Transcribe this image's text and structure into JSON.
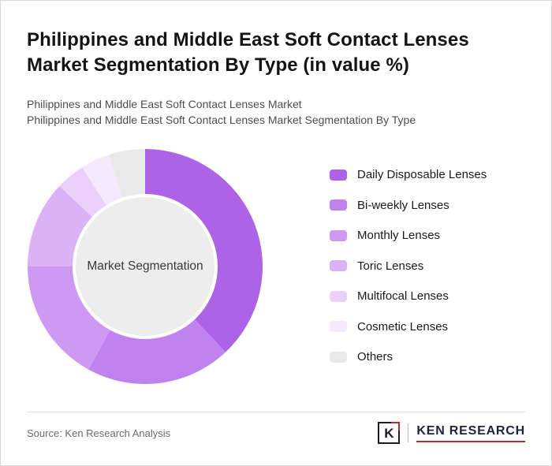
{
  "header": {
    "title": "Philippines and Middle East Soft Contact Lenses Market Segmentation By Type (in value %)",
    "subtitle1": "Philippines and Middle East Soft Contact Lenses Market",
    "subtitle2": "Philippines and Middle East Soft Contact Lenses Market Segmentation By Type"
  },
  "chart_data": {
    "type": "pie",
    "donut": true,
    "center_label": "Market Segmentation",
    "categories": [
      "Daily Disposable Lenses",
      "Bi-weekly Lenses",
      "Monthly Lenses",
      "Toric Lenses",
      "Multifocal Lenses",
      "Cosmetic Lenses",
      "Others"
    ],
    "values": [
      38,
      20,
      17,
      12,
      4,
      4,
      5
    ],
    "values_unit": "% (estimated from arc angles; not labeled in figure)",
    "colors": [
      "#ac63e8",
      "#bf82ef",
      "#cd99f2",
      "#dbb2f6",
      "#ead0fa",
      "#f5e9fd",
      "#e9e9e9"
    ],
    "hole_color": "#ededed",
    "start_angle_deg": 0,
    "direction": "clockwise",
    "legend_position": "right"
  },
  "footer": {
    "source": "Source: Ken Research Analysis",
    "logo_letter": "K",
    "logo_text": "KEN RESEARCH"
  }
}
